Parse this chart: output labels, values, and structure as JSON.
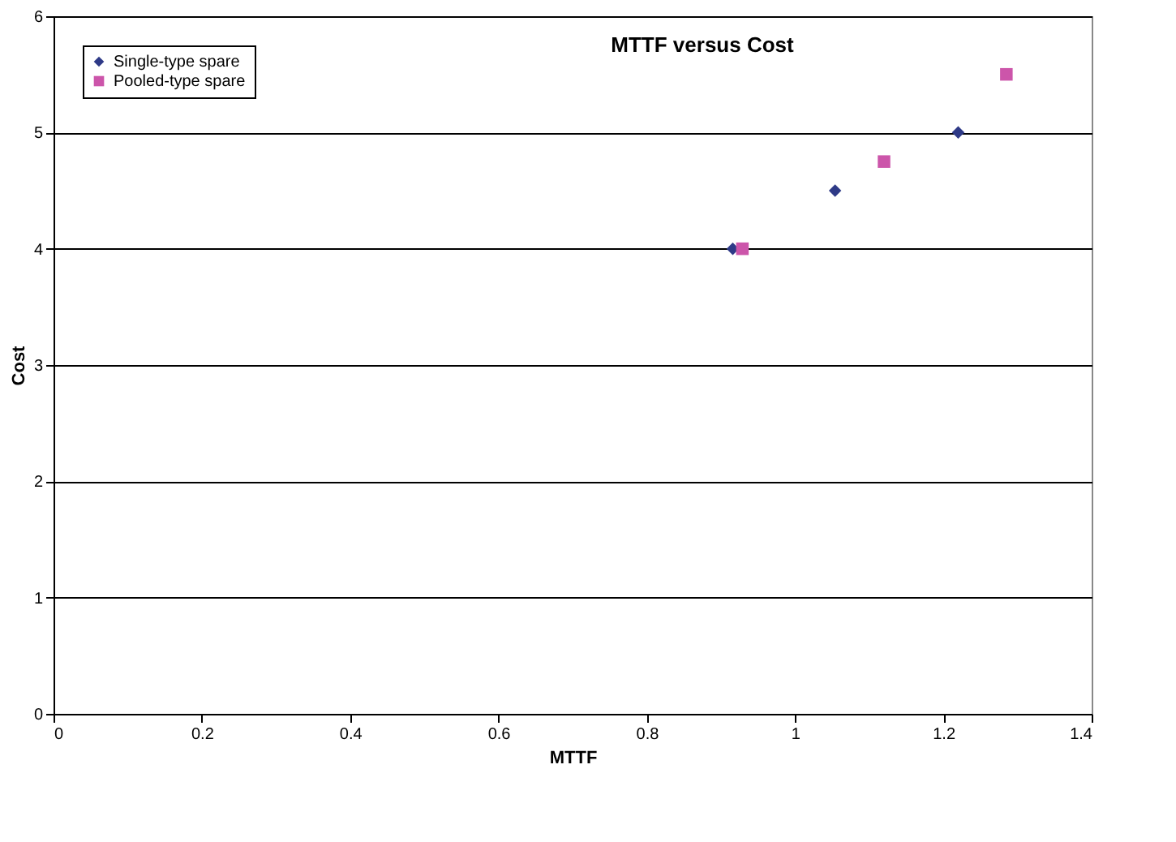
{
  "chart_data": {
    "type": "scatter",
    "title": "MTTF versus Cost",
    "xlabel": "MTTF",
    "ylabel": "Cost",
    "xlim": [
      0,
      1.4
    ],
    "xticks": [
      0,
      0.2,
      0.4,
      0.6,
      0.8,
      1,
      1.2,
      1.4
    ],
    "ylim": [
      0,
      6
    ],
    "yticks": [
      0,
      1,
      2,
      3,
      4,
      5,
      6
    ],
    "grid": "y",
    "legend": "top left",
    "series": [
      {
        "name": "Single-type spare",
        "color": "#2e3a87",
        "marker": "diamond",
        "x": [
          0.916,
          1.054,
          1.22
        ],
        "values": [
          4,
          4.5,
          5
        ]
      },
      {
        "name": "Pooled-type spare",
        "color": "#cc55aa",
        "marker": "square",
        "x": [
          0.929,
          1.12,
          1.285
        ],
        "values": [
          4,
          4.75,
          5.5
        ]
      }
    ]
  }
}
